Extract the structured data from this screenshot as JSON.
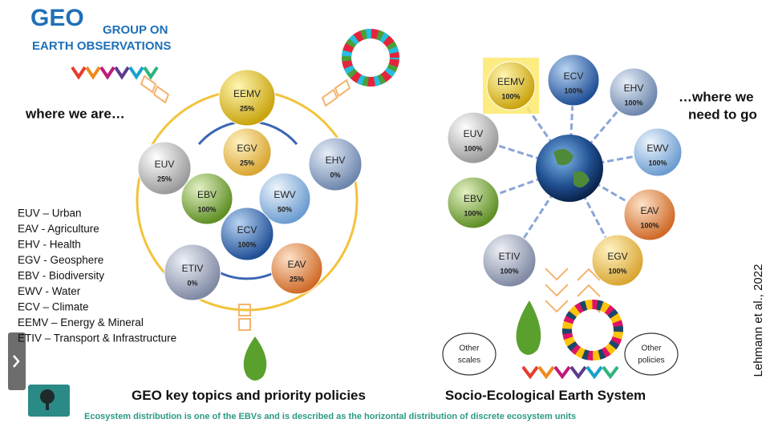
{
  "logo": {
    "mark": "GEO",
    "line1": "GROUP ON",
    "line2": "EARTH OBSERVATIONS"
  },
  "left_panel": {
    "heading": "where we are…",
    "title": "GEO key topics and priority policies",
    "spheres": [
      {
        "label": "EEMV",
        "percent": "25%"
      },
      {
        "label": "EGV",
        "percent": "25%"
      },
      {
        "label": "EUV",
        "percent": "25%"
      },
      {
        "label": "EHV",
        "percent": "0%"
      },
      {
        "label": "EBV",
        "percent": "100%"
      },
      {
        "label": "EWV",
        "percent": "50%"
      },
      {
        "label": "ECV",
        "percent": "100%"
      },
      {
        "label": "ETIV",
        "percent": "0%"
      },
      {
        "label": "EAV",
        "percent": "25%"
      }
    ]
  },
  "right_panel": {
    "heading_line1": "…where we",
    "heading_line2": "need to go",
    "title": "Socio-Ecological Earth System",
    "spheres": [
      {
        "label": "EEMV",
        "percent": "100%"
      },
      {
        "label": "ECV",
        "percent": "100%"
      },
      {
        "label": "EHV",
        "percent": "100%"
      },
      {
        "label": "EUV",
        "percent": "100%"
      },
      {
        "label": "EWV",
        "percent": "100%"
      },
      {
        "label": "EBV",
        "percent": "100%"
      },
      {
        "label": "EAV",
        "percent": "100%"
      },
      {
        "label": "ETIV",
        "percent": "100%"
      },
      {
        "label": "EGV",
        "percent": "100%"
      }
    ],
    "bubbles": [
      {
        "lines": [
          "Other",
          "scales"
        ]
      },
      {
        "lines": [
          "Other",
          "policies"
        ]
      }
    ]
  },
  "legend": [
    "EUV – Urban",
    "EAV - Agriculture",
    "EHV - Health",
    "EGV - Geosphere",
    "EBV - Biodiversity",
    "EWV - Water",
    "ECV – Climate",
    "EEMV – Energy & Mineral",
    "ETIV – Transport & Infrastructure"
  ],
  "caption": "Ecosystem distribution is one of the EBVs and is described as the horizontal distribution of discrete ecosystem units",
  "citation": "Lehmann et al., 2022"
}
